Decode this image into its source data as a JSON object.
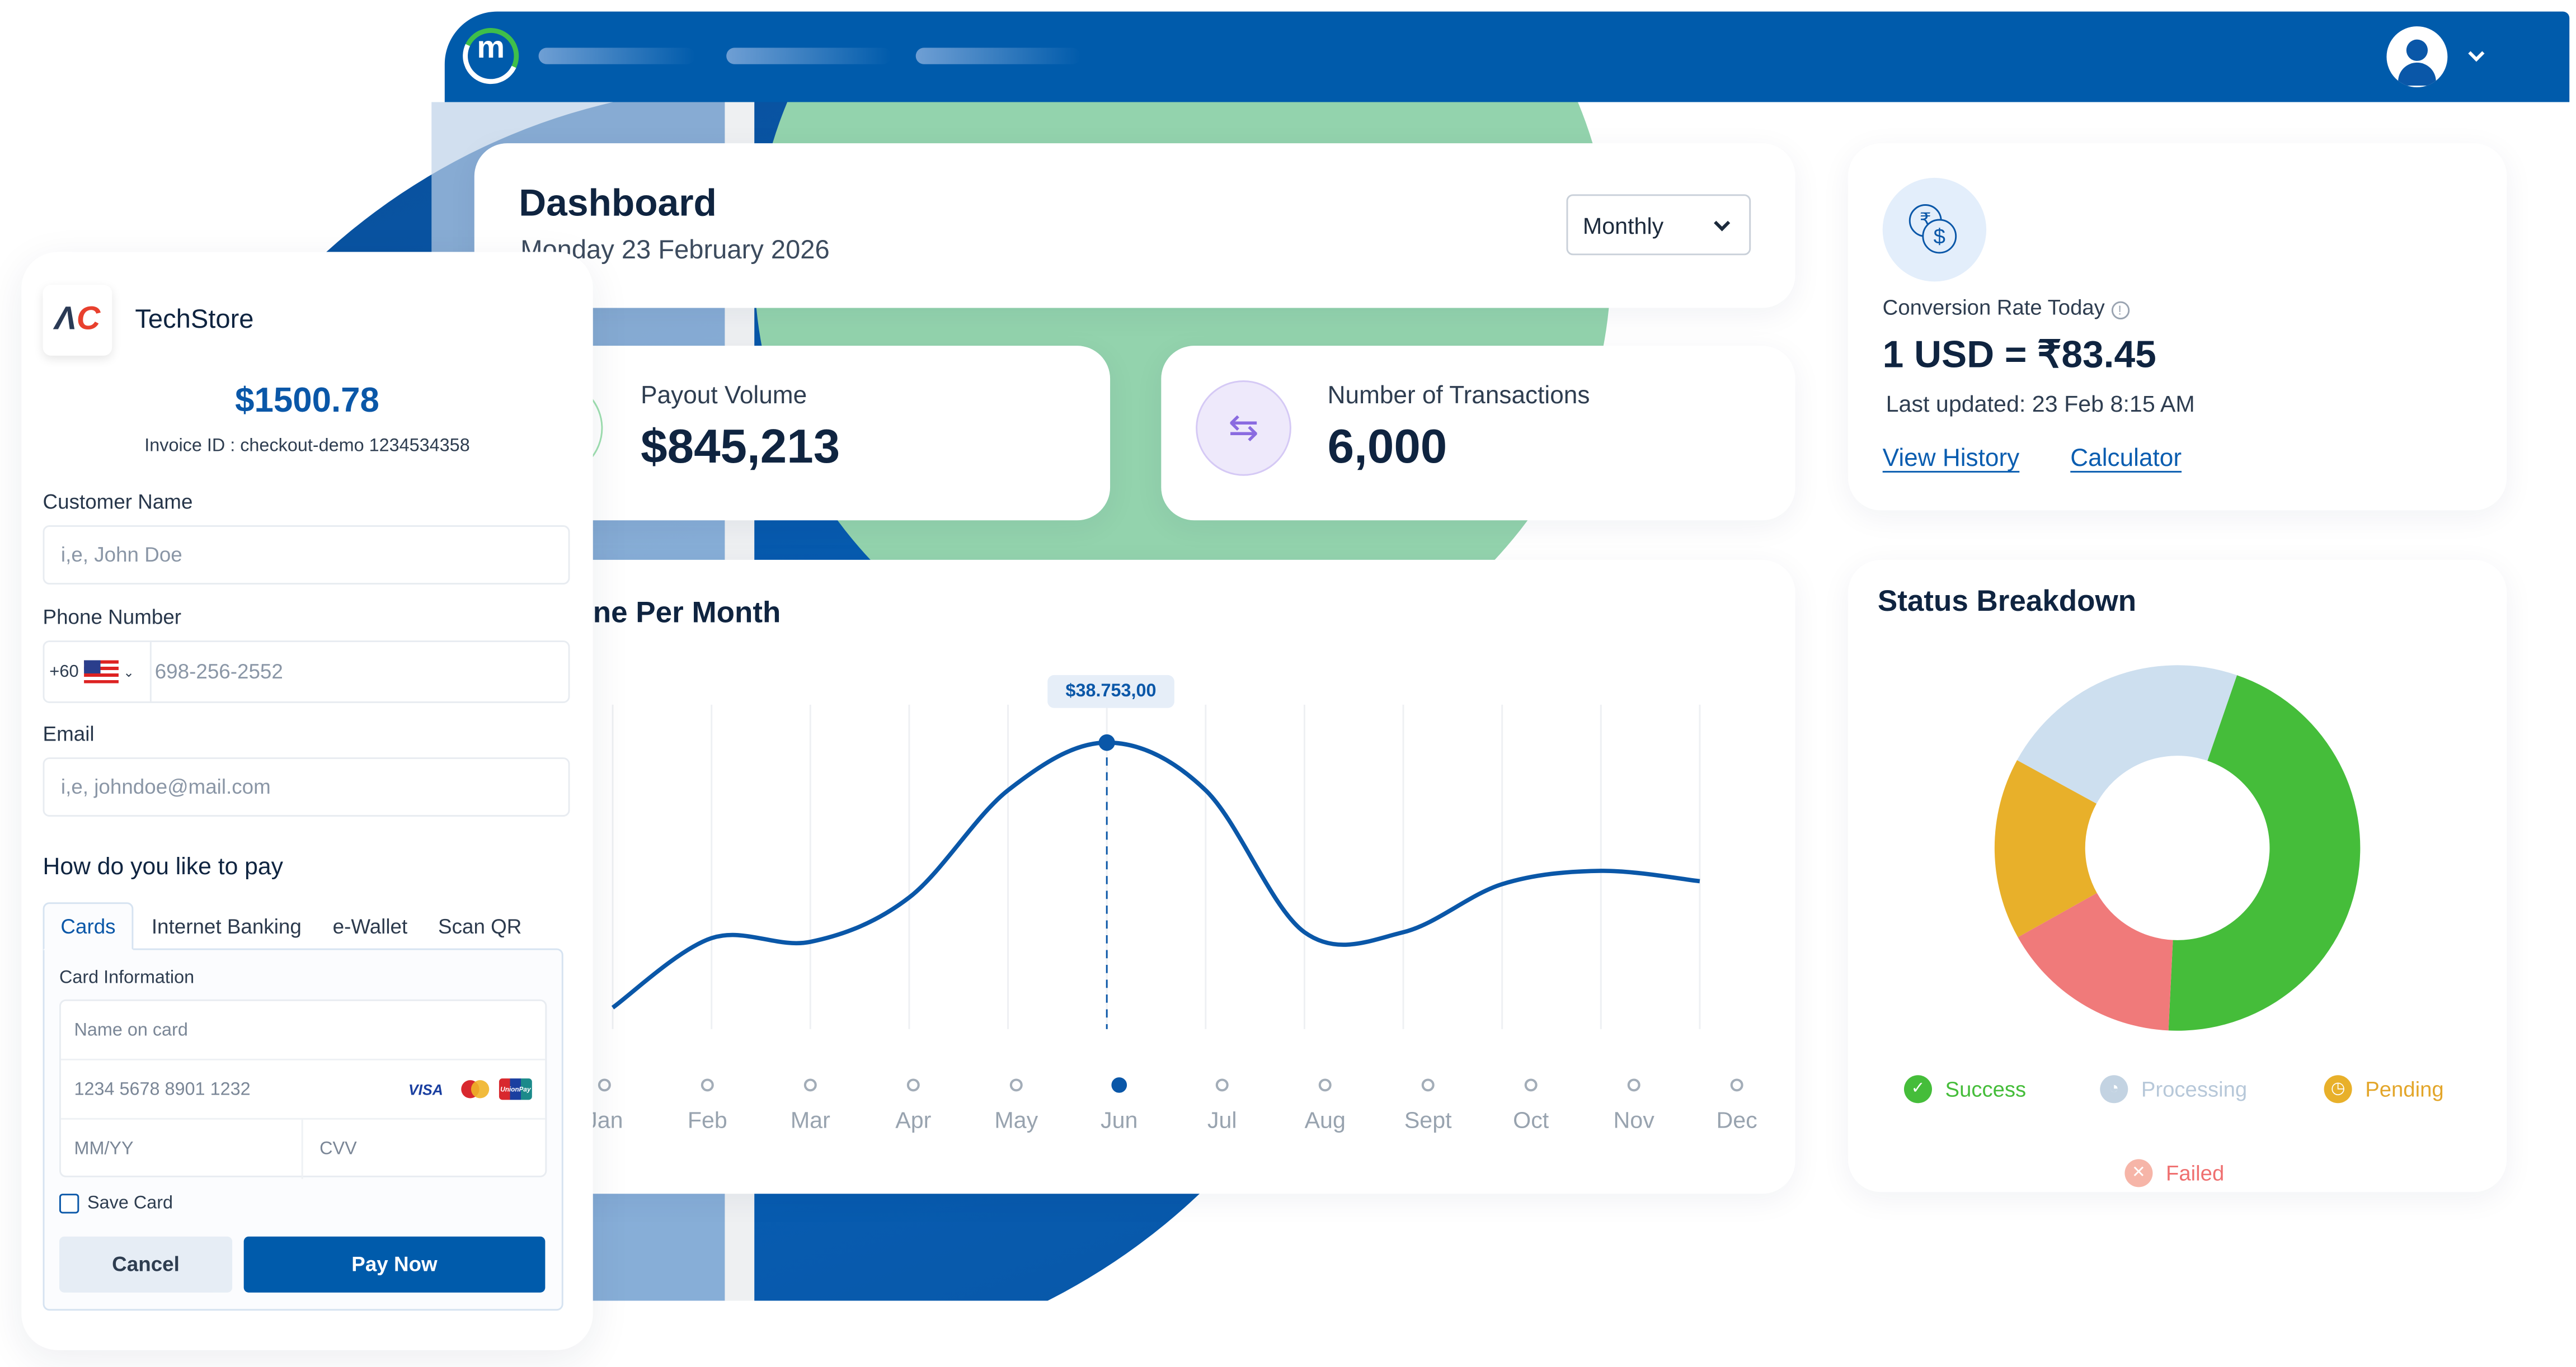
{
  "topbar": {
    "logo_letter": "m",
    "avatar_icon": "user-icon",
    "menu_icon": "chevron-down-icon"
  },
  "dashboard": {
    "title": "Dashboard",
    "date": "Monday 23 February 2026",
    "period_select": "Monthly"
  },
  "payout": {
    "label": "Payout Volume",
    "value": "$845,213"
  },
  "transactions": {
    "label": "Number of Transactions",
    "value": "6,000",
    "icon": "transfer-arrows-icon"
  },
  "conversion": {
    "icon": "currency-exchange-icon",
    "label": "Conversion Rate Today",
    "rate": "1 USD = ₹83.45",
    "updated": "Last updated: 23 Feb 8:15 AM",
    "view_history": "View History",
    "calculator": "Calculator"
  },
  "chart_data": [
    {
      "type": "line",
      "title": "ne Per Month",
      "categories": [
        "Jan",
        "Feb",
        "Mar",
        "Apr",
        "May",
        "Jun",
        "Jul",
        "Aug",
        "Sept",
        "Oct",
        "Nov",
        "Dec"
      ],
      "values": [
        2900,
        12300,
        11800,
        17800,
        32300,
        38753,
        32300,
        13100,
        13100,
        19600,
        21400,
        20000
      ],
      "highlight_index": 5,
      "highlight_label": "$38.753,00",
      "grid": "vertical",
      "color": "#0a57a8"
    },
    {
      "type": "pie",
      "title": "Status Breakdown",
      "donut": true,
      "series": [
        {
          "name": "Success",
          "value": 45.5,
          "color": "#45bd3a"
        },
        {
          "name": "Failed",
          "value": 16.1,
          "color": "#f07a7a"
        },
        {
          "name": "Pending",
          "value": 16.1,
          "color": "#e8b02a"
        },
        {
          "name": "Processing",
          "value": 22.3,
          "color": "#cddfef"
        }
      ]
    }
  ],
  "status_legend": {
    "success": "Success",
    "processing": "Processing",
    "pending": "Pending",
    "failed": "Failed"
  },
  "checkout": {
    "store_name": "TechStore",
    "amount": "$1500.78",
    "invoice": "Invoice ID : checkout-demo 1234534358",
    "customer_name_label": "Customer Name",
    "customer_name_placeholder": "i,e, John Doe",
    "phone_label": "Phone Number",
    "phone_code": "+60",
    "phone_placeholder": "698-256-2552",
    "email_label": "Email",
    "email_placeholder": "i,e, johndoe@mail.com",
    "pay_heading": "How do you like to pay",
    "tabs": [
      "Cards",
      "Internet Banking",
      "e-Wallet",
      "Scan QR"
    ],
    "active_tab": "Cards",
    "card_info_label": "Card Information",
    "name_on_card_placeholder": "Name on card",
    "card_number_placeholder": "1234 5678 8901 1232",
    "card_brands": [
      "VISA",
      "Mastercard",
      "UnionPay"
    ],
    "expiry_placeholder": "MM/YY",
    "cvv_placeholder": "CVV",
    "save_card_label": "Save Card",
    "save_card_checked": false,
    "cancel": "Cancel",
    "pay_now": "Pay Now"
  }
}
